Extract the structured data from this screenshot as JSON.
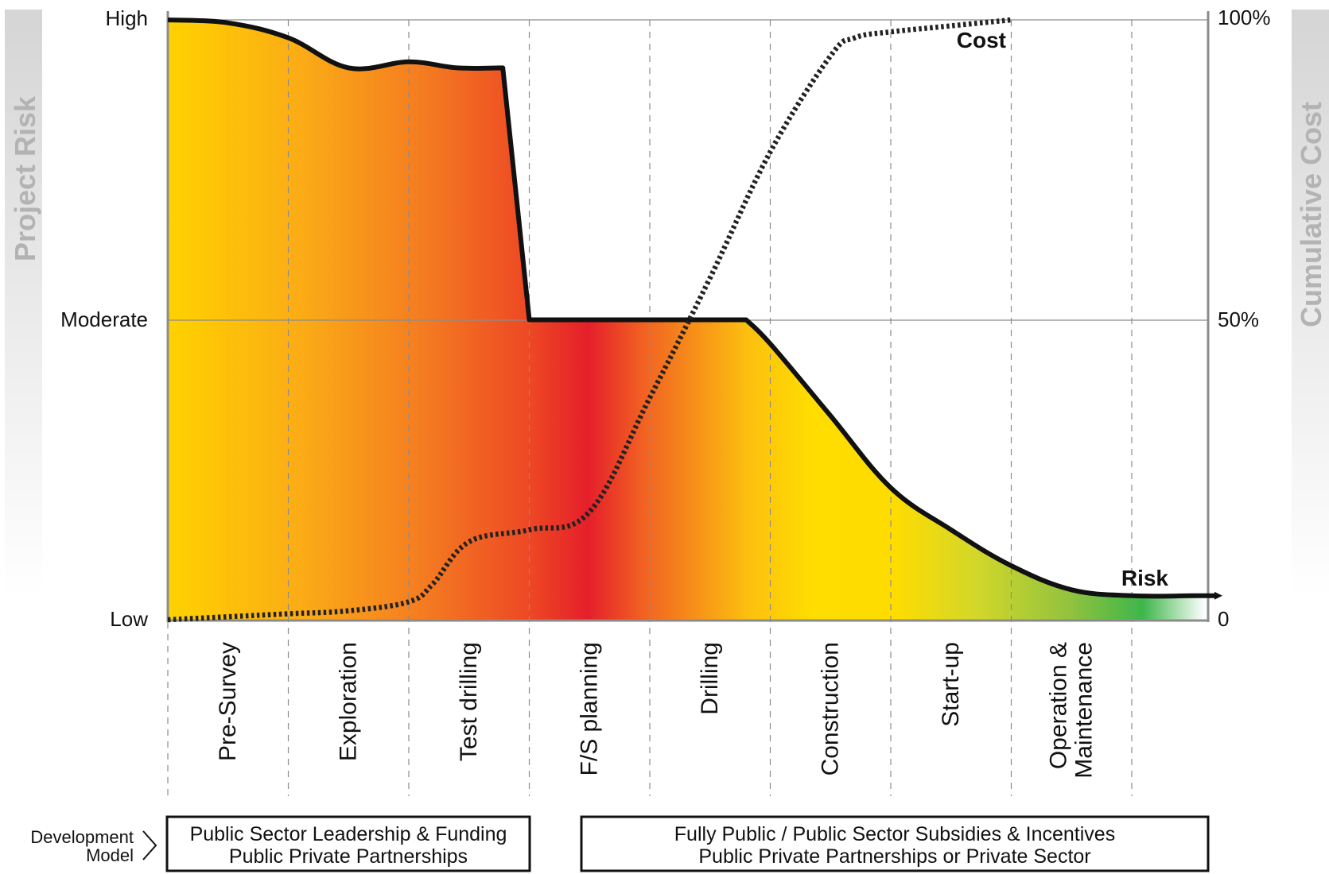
{
  "chart_data": {
    "type": "area",
    "left_axis": {
      "title": "Project Risk",
      "ticks": [
        "High",
        "Moderate",
        "Low"
      ]
    },
    "right_axis": {
      "title": "Cumulative Cost",
      "ticks": [
        "100%",
        "50%",
        "0"
      ],
      "ylim": [
        0,
        100
      ]
    },
    "stages": [
      "Pre-Survey",
      "Exploration",
      "Test drilling",
      "F/S planning",
      "Drilling",
      "Construction",
      "Start-up",
      "Operation & Maintenance"
    ],
    "stage_lines": [
      [
        "Pre-Survey"
      ],
      [
        "Exploration"
      ],
      [
        "Test drilling"
      ],
      [
        "F/S planning"
      ],
      [
        "Drilling"
      ],
      [
        "Construction"
      ],
      [
        "Start-up"
      ],
      [
        "Operation &",
        "Maintenance"
      ]
    ],
    "series": [
      {
        "name": "Risk",
        "x": [
          0,
          0.5,
          1,
          1.5,
          2,
          2.4,
          2.78,
          3,
          3.5,
          4,
          4.5,
          4.8,
          5,
          5.5,
          6,
          6.5,
          7,
          7.5,
          8,
          8.5,
          8.7
        ],
        "values": [
          100,
          99.5,
          97,
          92,
          93,
          92,
          92,
          50,
          50,
          50,
          50,
          50,
          46,
          34,
          22,
          15,
          9,
          5,
          4,
          4,
          4
        ]
      },
      {
        "name": "Cost",
        "x": [
          0,
          0.5,
          1,
          1.5,
          2,
          2.2,
          2.5,
          3,
          3.5,
          4,
          4.5,
          5,
          5.5,
          5.7,
          6,
          6.5,
          7
        ],
        "values": [
          0,
          0.5,
          1,
          1.5,
          3,
          6,
          13,
          15,
          18,
          37,
          57,
          78,
          94,
          97,
          98,
          99,
          100
        ]
      }
    ],
    "development_model": {
      "label_lines": [
        "Development",
        "Model"
      ],
      "boxes": [
        {
          "lines": [
            "Public Sector Leadership & Funding",
            "Public Private Partnerships"
          ]
        },
        {
          "lines": [
            "Fully Public / Public Sector Subsidies & Incentives",
            "Public Private Partnerships or Private Sector"
          ]
        }
      ]
    },
    "colors": {
      "risk_line": "#111111",
      "cost_line": "#222222",
      "gradient": [
        "#ffd200",
        "#f7961e",
        "#e8202a",
        "#f7941d",
        "#ffdb00",
        "#c9d22f",
        "#3cb54a",
        "#ffffff"
      ],
      "axis_title": "#b3b3b3"
    }
  }
}
